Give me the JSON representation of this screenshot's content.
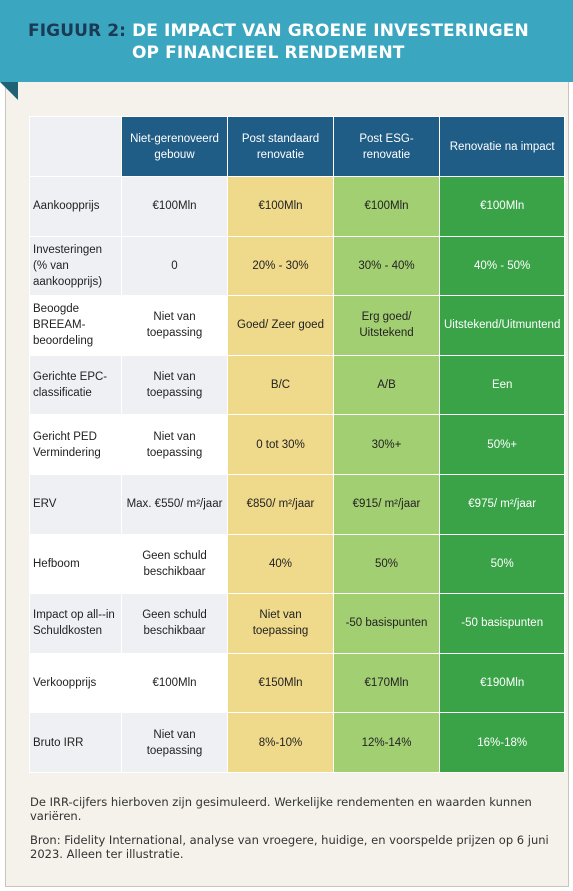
{
  "header": {
    "figure_label": "FIGUUR 2:",
    "title_line1": "DE IMPACT VAN GROENE INVESTERINGEN",
    "title_line2": "OP FINANCIEEL RENDEMENT"
  },
  "table": {
    "columns": [
      "Niet-gerenoveerd gebouw",
      "Post standaard renovatie",
      "Post ESG-renovatie",
      "Renovatie na impact"
    ],
    "rows": [
      {
        "label": "Aankoopprijs",
        "cells": [
          "€100Mln",
          "€100Mln",
          "€100Mln",
          "€100Mln"
        ]
      },
      {
        "label": "Investeringen (% van aankoopprijs)",
        "cells": [
          "0",
          "20% - 30%",
          "30% - 40%",
          "40% - 50%"
        ]
      },
      {
        "label": "Beoogde BREEAM-beoordeling",
        "cells": [
          "Niet van toepassing",
          "Goed/ Zeer goed",
          "Erg goed/ Uitstekend",
          "Uitstekend/Uitmuntend"
        ]
      },
      {
        "label": "Gerichte EPC-classificatie",
        "cells": [
          "Niet van toepassing",
          "B/C",
          "A/B",
          "Een"
        ]
      },
      {
        "label": "Gericht PED Vermindering",
        "cells": [
          "Niet van toepassing",
          "0 tot 30%",
          "30%+",
          "50%+"
        ]
      },
      {
        "label": "ERV",
        "cells": [
          "Max. €550/ m²/jaar",
          "€850/ m²/jaar",
          "€915/ m²/jaar",
          "€975/ m²/jaar"
        ]
      },
      {
        "label": "Hefboom",
        "cells": [
          "Geen schuld beschikbaar",
          "40%",
          "50%",
          "50%"
        ]
      },
      {
        "label": "Impact op all--in Schuldkosten",
        "cells": [
          "Geen schuld beschikbaar",
          "Niet van toepassing",
          "-50 basispunten",
          "-50 basispunten"
        ]
      },
      {
        "label": "Verkoopprijs",
        "cells": [
          "€100Mln",
          "€150Mln",
          "€170Mln",
          "€190Mln"
        ]
      },
      {
        "label": "Bruto IRR",
        "cells": [
          "Niet van toepassing",
          "8%-10%",
          "12%-14%",
          "16%-18%"
        ]
      }
    ]
  },
  "notes": {
    "note1": "De IRR-cijfers hierboven zijn gesimuleerd. Werkelijke rendementen en waarden kunnen variëren.",
    "note2": "Bron: Fidelity International, analyse van vroegere, huidige, en voorspelde prijzen op 6 juni 2023. Alleen ter illustratie."
  }
}
